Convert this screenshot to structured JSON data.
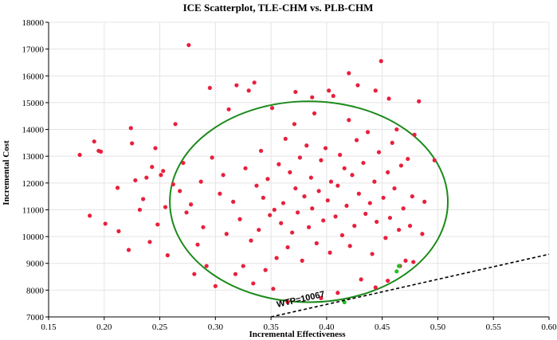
{
  "chart_data": {
    "type": "scatter",
    "title": "ICE Scatterplot, TLE-CHM vs. PLB-CHM",
    "xlabel": "Incremental Effectiveness",
    "ylabel": "Incremental Cost",
    "xlim": [
      0.15,
      0.6
    ],
    "ylim": [
      7000,
      18000
    ],
    "xticks": [
      "0.15",
      "0.20",
      "0.25",
      "0.30",
      "0.35",
      "0.40",
      "0.45",
      "0.50",
      "0.55",
      "0.60"
    ],
    "yticks": [
      "7000",
      "8000",
      "9000",
      "10000",
      "11000",
      "12000",
      "13000",
      "14000",
      "15000",
      "16000",
      "17000",
      "18000"
    ],
    "grid": true,
    "colors": {
      "points": "#e8203c",
      "highlight_points": "#22c020",
      "ellipse": "#1a8a1a",
      "wtp_line": "#000000"
    },
    "series": [
      {
        "values": [
          [
            0.178,
            13050
          ],
          [
            0.187,
            10780
          ],
          [
            0.191,
            13550
          ],
          [
            0.195,
            13200
          ],
          [
            0.197,
            13170
          ],
          [
            0.201,
            10480
          ],
          [
            0.212,
            11820
          ],
          [
            0.213,
            10200
          ],
          [
            0.222,
            9500
          ],
          [
            0.224,
            14050
          ],
          [
            0.225,
            13480
          ],
          [
            0.228,
            12100
          ],
          [
            0.232,
            11000
          ],
          [
            0.235,
            11400
          ],
          [
            0.238,
            12200
          ],
          [
            0.241,
            9800
          ],
          [
            0.243,
            12600
          ],
          [
            0.246,
            13300
          ],
          [
            0.248,
            10450
          ],
          [
            0.251,
            12300
          ],
          [
            0.253,
            12450
          ],
          [
            0.255,
            11100
          ],
          [
            0.257,
            9300
          ],
          [
            0.262,
            11950
          ],
          [
            0.264,
            14200
          ],
          [
            0.268,
            11700
          ],
          [
            0.271,
            12750
          ],
          [
            0.274,
            10900
          ],
          [
            0.276,
            17150
          ],
          [
            0.278,
            11200
          ],
          [
            0.281,
            8600
          ],
          [
            0.284,
            9700
          ],
          [
            0.287,
            12050
          ],
          [
            0.289,
            10350
          ],
          [
            0.292,
            8900
          ],
          [
            0.295,
            15550
          ],
          [
            0.297,
            12950
          ],
          [
            0.3,
            8150
          ],
          [
            0.304,
            11600
          ],
          [
            0.307,
            12300
          ],
          [
            0.31,
            10100
          ],
          [
            0.312,
            14750
          ],
          [
            0.316,
            11300
          ],
          [
            0.319,
            15650
          ],
          [
            0.322,
            10650
          ],
          [
            0.325,
            8900
          ],
          [
            0.327,
            12550
          ],
          [
            0.33,
            15450
          ],
          [
            0.332,
            9850
          ],
          [
            0.335,
            15750
          ],
          [
            0.337,
            11900
          ],
          [
            0.339,
            10250
          ],
          [
            0.341,
            13200
          ],
          [
            0.343,
            11450
          ],
          [
            0.345,
            8750
          ],
          [
            0.347,
            12150
          ],
          [
            0.349,
            10800
          ],
          [
            0.351,
            14800
          ],
          [
            0.353,
            11000
          ],
          [
            0.355,
            9200
          ],
          [
            0.357,
            12700
          ],
          [
            0.359,
            10500
          ],
          [
            0.361,
            11250
          ],
          [
            0.363,
            13650
          ],
          [
            0.365,
            9600
          ],
          [
            0.367,
            12400
          ],
          [
            0.369,
            10150
          ],
          [
            0.371,
            14200
          ],
          [
            0.372,
            11800
          ],
          [
            0.374,
            10900
          ],
          [
            0.376,
            12950
          ],
          [
            0.378,
            9100
          ],
          [
            0.38,
            11500
          ],
          [
            0.382,
            13400
          ],
          [
            0.384,
            10350
          ],
          [
            0.386,
            12200
          ],
          [
            0.387,
            11050
          ],
          [
            0.389,
            14600
          ],
          [
            0.391,
            9750
          ],
          [
            0.393,
            11700
          ],
          [
            0.395,
            12850
          ],
          [
            0.397,
            10600
          ],
          [
            0.399,
            13300
          ],
          [
            0.401,
            11350
          ],
          [
            0.403,
            9400
          ],
          [
            0.404,
            12050
          ],
          [
            0.406,
            15250
          ],
          [
            0.408,
            10750
          ],
          [
            0.41,
            11900
          ],
          [
            0.412,
            13050
          ],
          [
            0.414,
            10050
          ],
          [
            0.416,
            12550
          ],
          [
            0.418,
            11150
          ],
          [
            0.42,
            14350
          ],
          [
            0.421,
            9650
          ],
          [
            0.423,
            12300
          ],
          [
            0.425,
            10400
          ],
          [
            0.427,
            13600
          ],
          [
            0.429,
            11600
          ],
          [
            0.431,
            8400
          ],
          [
            0.433,
            12750
          ],
          [
            0.435,
            10850
          ],
          [
            0.437,
            13900
          ],
          [
            0.439,
            11250
          ],
          [
            0.441,
            9350
          ],
          [
            0.443,
            12050
          ],
          [
            0.445,
            10550
          ],
          [
            0.447,
            13150
          ],
          [
            0.449,
            16550
          ],
          [
            0.451,
            11450
          ],
          [
            0.453,
            9950
          ],
          [
            0.455,
            12400
          ],
          [
            0.457,
            10700
          ],
          [
            0.459,
            13500
          ],
          [
            0.461,
            11800
          ],
          [
            0.463,
            14000
          ],
          [
            0.465,
            10250
          ],
          [
            0.467,
            12650
          ],
          [
            0.469,
            11050
          ],
          [
            0.471,
            9100
          ],
          [
            0.473,
            12900
          ],
          [
            0.475,
            10400
          ],
          [
            0.477,
            11500
          ],
          [
            0.479,
            13800
          ],
          [
            0.483,
            15050
          ],
          [
            0.497,
            12850
          ],
          [
            0.428,
            15650
          ],
          [
            0.42,
            16100
          ],
          [
            0.402,
            15450
          ],
          [
            0.387,
            15200
          ],
          [
            0.456,
            15150
          ],
          [
            0.444,
            15450
          ],
          [
            0.372,
            15400
          ],
          [
            0.365,
            7550
          ],
          [
            0.395,
            7700
          ],
          [
            0.41,
            7900
          ],
          [
            0.444,
            8100
          ],
          [
            0.455,
            8350
          ],
          [
            0.334,
            8250
          ],
          [
            0.352,
            8050
          ],
          [
            0.318,
            8600
          ],
          [
            0.466,
            8900
          ],
          [
            0.478,
            9050
          ],
          [
            0.486,
            10100
          ],
          [
            0.488,
            11300
          ]
        ]
      },
      {
        "values": [
          [
            0.416,
            7550
          ],
          [
            0.463,
            8700
          ],
          [
            0.465,
            8900
          ]
        ]
      }
    ],
    "ellipse": {
      "cx": 0.384,
      "cy": 11300,
      "rx": 0.125,
      "ry": 3750
    },
    "wtp_line": {
      "label": "WTP=10067",
      "slope": 10067,
      "x": [
        0.35,
        0.6
      ]
    }
  }
}
